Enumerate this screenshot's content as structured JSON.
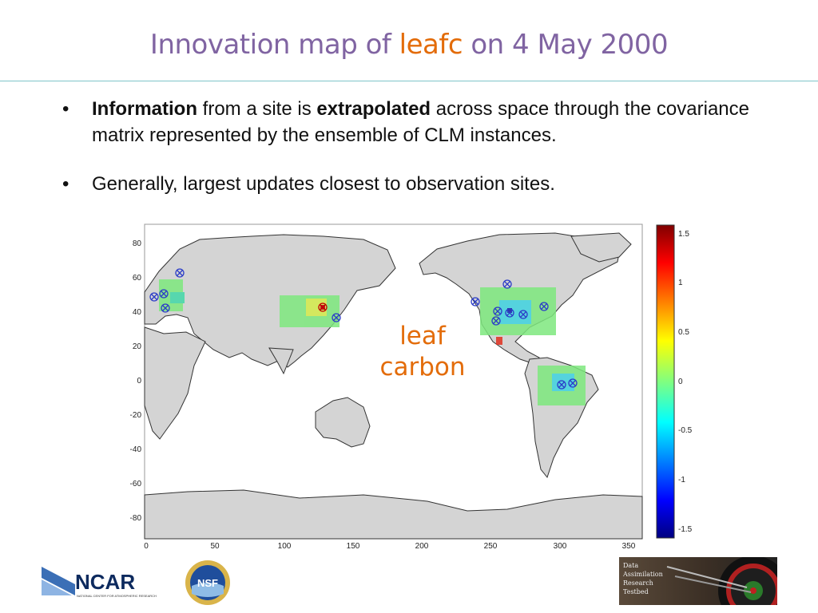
{
  "slide": {
    "title_before": "Innovation map of ",
    "title_highlight": "leafc",
    "title_after": " on 4 May 2000",
    "bullet_char": "•",
    "bullets": [
      {
        "bold1": "Information",
        "text1": " from a site is ",
        "bold2": "extrapolated",
        "text2": " across space through the covariance matrix represented by the ensemble of CLM instances."
      },
      {
        "text": "Generally, largest updates closest to observation sites."
      }
    ]
  },
  "map": {
    "overlay_line1": "leaf",
    "overlay_line2": "carbon",
    "x_ticks": [
      "0",
      "50",
      "100",
      "150",
      "200",
      "250",
      "300",
      "350"
    ],
    "y_ticks": [
      "80",
      "60",
      "40",
      "20",
      "0",
      "-20",
      "-40",
      "-60",
      "-80"
    ],
    "colorbar_ticks": [
      "1.5",
      "1",
      "0.5",
      "0",
      "-0.5",
      "-1",
      "-1.5"
    ],
    "colorbar_range": [
      -1.6,
      1.6
    ],
    "land_color": "#d4d4d4"
  },
  "logos": {
    "ncar_name": "NCAR",
    "ncar_sub": "NATIONAL CENTER FOR ATMOSPHERIC RESEARCH",
    "nsf_name": "NSF",
    "dart_lines": [
      "Data",
      "Assimilation",
      "Research",
      "Testbed"
    ]
  }
}
